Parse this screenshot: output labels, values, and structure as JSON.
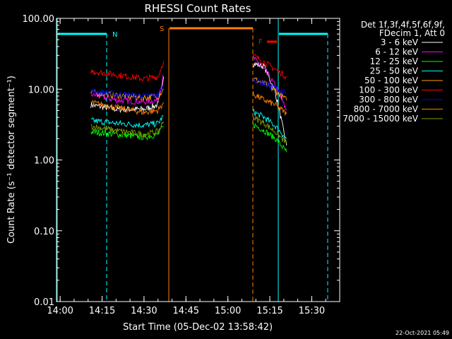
{
  "chart_data": {
    "type": "line",
    "title": "RHESSI Count Rates",
    "xlabel": "Start Time (05-Dec-02 13:58:42)",
    "ylabel": "Count Rate (s⁻¹ detector segment⁻¹)",
    "y_scale": "log",
    "ylim": [
      0.01,
      100
    ],
    "xlim": [
      "13:58:42",
      "15:40:00"
    ],
    "x_ticks": [
      "14:00",
      "14:15",
      "14:30",
      "14:45",
      "15:00",
      "15:15",
      "15:30"
    ],
    "y_ticks": [
      "0.01",
      "0.10",
      "1.00",
      "10.00",
      "100.00"
    ],
    "grid": false,
    "legend_position": "right",
    "legend_header": [
      "Det 1f,3f,4f,5f,6f,9f,",
      "FDecim 1, Att 0"
    ],
    "series": [
      {
        "name": "3 - 6 keV",
        "color": "#ffffff",
        "x": [
          "14:11",
          "14:20",
          "14:30",
          "14:35",
          "14:37",
          "15:09",
          "15:13",
          "15:17",
          "15:21"
        ],
        "values": [
          6.0,
          5.2,
          5.2,
          6.0,
          15,
          23,
          21,
          9,
          1.6
        ]
      },
      {
        "name": "6 - 12 keV",
        "color": "#ff00ff",
        "x": [
          "14:11",
          "14:20",
          "14:30",
          "14:35",
          "14:37",
          "15:09",
          "15:13",
          "15:17",
          "15:21"
        ],
        "values": [
          8.5,
          7.0,
          6.6,
          7.0,
          16,
          28,
          19,
          11,
          5
        ]
      },
      {
        "name": "12 - 25 keV",
        "color": "#00ff00",
        "x": [
          "14:11",
          "14:20",
          "14:30",
          "14:35",
          "14:37",
          "15:09",
          "15:13",
          "15:17",
          "15:21"
        ],
        "values": [
          2.5,
          2.3,
          2.1,
          2.3,
          3,
          3.2,
          2.6,
          2.0,
          1.3
        ]
      },
      {
        "name": "25 - 50 keV",
        "color": "#00ffff",
        "x": [
          "14:11",
          "14:20",
          "14:30",
          "14:35",
          "14:37",
          "15:09",
          "15:13",
          "15:17",
          "15:21"
        ],
        "values": [
          3.6,
          3.3,
          3.1,
          3.3,
          4.2,
          4.8,
          4.0,
          3.0,
          2.0
        ]
      },
      {
        "name": "50 - 100 keV",
        "color": "#ffa000",
        "x": [
          "14:11",
          "14:20",
          "14:30",
          "14:35",
          "14:37",
          "15:09",
          "15:13",
          "15:17",
          "15:21"
        ],
        "values": [
          9,
          8.2,
          7.6,
          8.0,
          10,
          14,
          12,
          9.5,
          7
        ]
      },
      {
        "name": "100 - 300 keV",
        "color": "#ff0000",
        "x": [
          "14:11",
          "14:20",
          "14:30",
          "14:35",
          "14:37",
          "15:09",
          "15:13",
          "15:17",
          "15:21"
        ],
        "values": [
          18,
          16,
          14,
          15,
          25,
          30,
          24,
          19,
          15
        ]
      },
      {
        "name": "300 - 800 keV",
        "color": "#0000ff",
        "x": [
          "14:11",
          "14:20",
          "14:30",
          "14:35",
          "14:37",
          "15:09",
          "15:13",
          "15:17",
          "15:21"
        ],
        "values": [
          9.5,
          8.5,
          8.0,
          8.5,
          11,
          14,
          12,
          10.5,
          8.5
        ]
      },
      {
        "name": "800 - 7000 keV",
        "color": "#ff8000",
        "x": [
          "14:11",
          "14:20",
          "14:30",
          "14:35",
          "14:37",
          "15:09",
          "15:13",
          "15:17",
          "15:21"
        ],
        "values": [
          6.5,
          5.5,
          4.7,
          5.0,
          6.5,
          8.5,
          7,
          6,
          4.5
        ]
      },
      {
        "name": "7000 - 15000 keV",
        "color": "#80a000",
        "x": [
          "14:11",
          "14:20",
          "14:30",
          "14:35",
          "14:37",
          "15:09",
          "15:13",
          "15:17",
          "15:21"
        ],
        "values": [
          3.0,
          2.6,
          2.3,
          2.5,
          3.5,
          4.0,
          3.3,
          2.5,
          1.7
        ]
      }
    ],
    "annotations": [
      {
        "label": "N",
        "color": "#00ffff"
      },
      {
        "label": "S",
        "color": "#ff8000"
      },
      {
        "label": "F",
        "color": "#ff0000"
      }
    ],
    "footer_stamp": "22-Oct-2021 05:49"
  }
}
